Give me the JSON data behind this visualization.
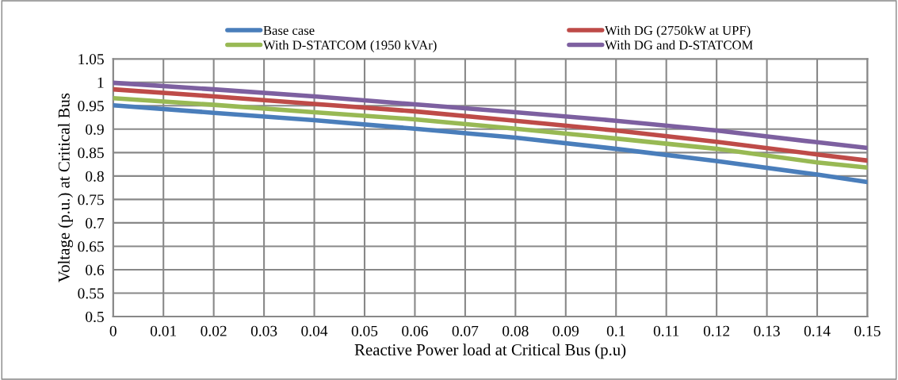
{
  "chart_data": {
    "type": "line",
    "xlabel": "Reactive Power load at Critical Bus (p.u)",
    "ylabel": "Voltage (p.u.) at Critical Bus",
    "x": [
      0,
      0.02,
      0.04,
      0.06,
      0.08,
      0.1,
      0.12,
      0.14,
      0.15
    ],
    "series": [
      {
        "name": "Base case",
        "color": "#4a7ebb",
        "values": [
          0.951,
          0.935,
          0.919,
          0.901,
          0.882,
          0.858,
          0.832,
          0.803,
          0.787
        ]
      },
      {
        "name": "With DG (2750kW at UPF)",
        "color": "#be4b48",
        "values": [
          0.985,
          0.97,
          0.954,
          0.938,
          0.918,
          0.897,
          0.873,
          0.846,
          0.833
        ]
      },
      {
        "name": "With D-STATCOM (1950 kVAr)",
        "color": "#98b954",
        "values": [
          0.966,
          0.952,
          0.936,
          0.921,
          0.901,
          0.88,
          0.858,
          0.829,
          0.818
        ]
      },
      {
        "name": "With DG and D-STATCOM",
        "color": "#7d60a0",
        "values": [
          0.999,
          0.985,
          0.97,
          0.953,
          0.936,
          0.918,
          0.897,
          0.872,
          0.86
        ]
      }
    ],
    "xlim": [
      0,
      0.15
    ],
    "xticks": [
      0,
      0.01,
      0.02,
      0.03,
      0.04,
      0.05,
      0.06,
      0.07,
      0.08,
      0.09,
      0.1,
      0.11,
      0.12,
      0.13,
      0.14,
      0.15
    ],
    "ylim": [
      0.5,
      1.05
    ],
    "yticks": [
      0.5,
      0.55,
      0.6,
      0.65,
      0.7,
      0.75,
      0.8,
      0.85,
      0.9,
      0.95,
      1,
      1.05
    ],
    "grid": true,
    "legend": "top",
    "marker": "none",
    "line_style": "solid"
  }
}
